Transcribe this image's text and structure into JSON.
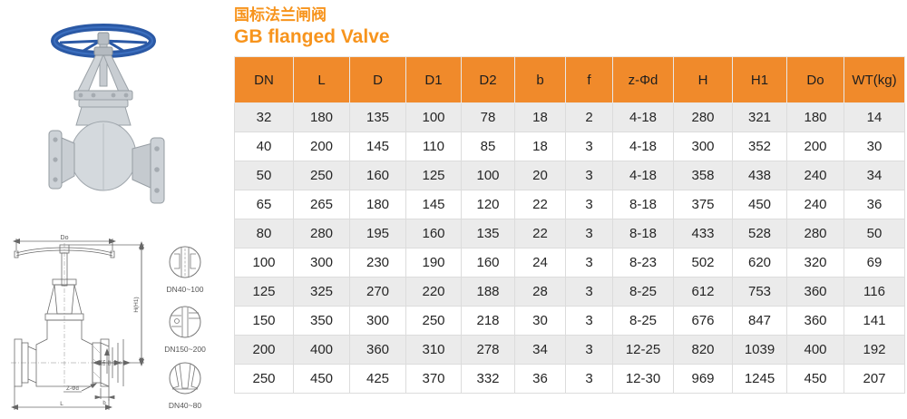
{
  "page": {
    "title_cn": "国标法兰闸阀",
    "title_en": "GB flanged Valve",
    "accent_color": "#F7941D"
  },
  "table": {
    "header_bg": "#F08A2B",
    "row_alt_bg": "#EBEBEB",
    "columns": [
      "DN",
      "L",
      "D",
      "D1",
      "D2",
      "b",
      "f",
      "z-Φd",
      "H",
      "H1",
      "Do",
      "WT(kg)"
    ],
    "rows": [
      [
        "32",
        "180",
        "135",
        "100",
        "78",
        "18",
        "2",
        "4-18",
        "280",
        "321",
        "180",
        "14"
      ],
      [
        "40",
        "200",
        "145",
        "110",
        "85",
        "18",
        "3",
        "4-18",
        "300",
        "352",
        "200",
        "30"
      ],
      [
        "50",
        "250",
        "160",
        "125",
        "100",
        "20",
        "3",
        "4-18",
        "358",
        "438",
        "240",
        "34"
      ],
      [
        "65",
        "265",
        "180",
        "145",
        "120",
        "22",
        "3",
        "8-18",
        "375",
        "450",
        "240",
        "36"
      ],
      [
        "80",
        "280",
        "195",
        "160",
        "135",
        "22",
        "3",
        "8-18",
        "433",
        "528",
        "280",
        "50"
      ],
      [
        "100",
        "300",
        "230",
        "190",
        "160",
        "24",
        "3",
        "8-23",
        "502",
        "620",
        "320",
        "69"
      ],
      [
        "125",
        "325",
        "270",
        "220",
        "188",
        "28",
        "3",
        "8-25",
        "612",
        "753",
        "360",
        "116"
      ],
      [
        "150",
        "350",
        "300",
        "250",
        "218",
        "30",
        "3",
        "8-25",
        "676",
        "847",
        "360",
        "141"
      ],
      [
        "200",
        "400",
        "360",
        "310",
        "278",
        "34",
        "3",
        "12-25",
        "820",
        "1039",
        "400",
        "192"
      ],
      [
        "250",
        "450",
        "425",
        "370",
        "332",
        "36",
        "3",
        "12-30",
        "969",
        "1245",
        "450",
        "207"
      ]
    ]
  },
  "drawing": {
    "dim_do": "Do",
    "dim_h": "H(H1)",
    "dim_dn": "DN",
    "dim_d2": "D2",
    "dim_d1": "D1",
    "dim_d": "D",
    "dim_zd": "Z-Φd",
    "dim_b": "b",
    "dim_l": "L",
    "details": [
      {
        "label": "DN40~100"
      },
      {
        "label": "DN150~200"
      },
      {
        "label": "DN40~80"
      }
    ]
  }
}
